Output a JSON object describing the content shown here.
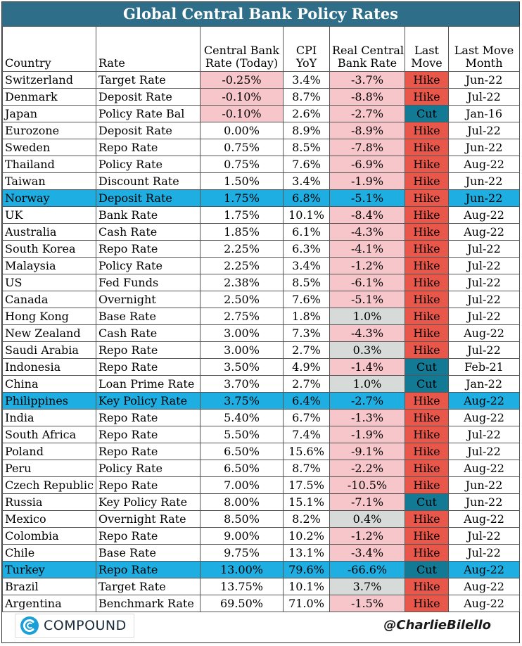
{
  "title": "Global Central Bank Policy Rates",
  "headers": {
    "country": "Country",
    "rate": "Rate",
    "cb_rate_1": "Central Bank",
    "cb_rate_2": "Rate (Today)",
    "cpi_1": "CPI",
    "cpi_2": "YoY",
    "real_1": "Real Central",
    "real_2": "Bank Rate",
    "move_1": "Last",
    "move_2": "Move",
    "month_1": "Last Move",
    "month_2": "Month"
  },
  "colors": {
    "header_bar": "#2f6e89",
    "negative_real": "#f7c6cb",
    "positive_real": "#d6dad8",
    "hike": "#e8574a",
    "cut": "#127a94",
    "highlight_row": "#1eaee2"
  },
  "rows": [
    {
      "country": "Switzerland",
      "rate": "Target Rate",
      "cb": "-0.25%",
      "cpi": "3.4%",
      "real": "-3.7%",
      "move": "Hike",
      "month": "Jun-22",
      "cb_neg": true,
      "highlight": false
    },
    {
      "country": "Denmark",
      "rate": "Deposit Rate",
      "cb": "-0.10%",
      "cpi": "8.7%",
      "real": "-8.8%",
      "move": "Hike",
      "month": "Jul-22",
      "cb_neg": true,
      "highlight": false
    },
    {
      "country": "Japan",
      "rate": "Policy Rate Bal",
      "cb": "-0.10%",
      "cpi": "2.6%",
      "real": "-2.7%",
      "move": "Cut",
      "month": "Jan-16",
      "cb_neg": true,
      "highlight": false
    },
    {
      "country": "Eurozone",
      "rate": "Deposit Rate",
      "cb": "0.00%",
      "cpi": "8.9%",
      "real": "-8.9%",
      "move": "Hike",
      "month": "Jul-22",
      "cb_neg": false,
      "highlight": false
    },
    {
      "country": "Sweden",
      "rate": "Repo Rate",
      "cb": "0.75%",
      "cpi": "8.5%",
      "real": "-7.8%",
      "move": "Hike",
      "month": "Jun-22",
      "cb_neg": false,
      "highlight": false
    },
    {
      "country": "Thailand",
      "rate": "Policy Rate",
      "cb": "0.75%",
      "cpi": "7.6%",
      "real": "-6.9%",
      "move": "Hike",
      "month": "Aug-22",
      "cb_neg": false,
      "highlight": false
    },
    {
      "country": "Taiwan",
      "rate": "Discount Rate",
      "cb": "1.50%",
      "cpi": "3.4%",
      "real": "-1.9%",
      "move": "Hike",
      "month": "Jun-22",
      "cb_neg": false,
      "highlight": false
    },
    {
      "country": "Norway",
      "rate": "Deposit Rate",
      "cb": "1.75%",
      "cpi": "6.8%",
      "real": "-5.1%",
      "move": "Hike",
      "month": "Jun-22",
      "cb_neg": false,
      "highlight": true
    },
    {
      "country": "UK",
      "rate": "Bank Rate",
      "cb": "1.75%",
      "cpi": "10.1%",
      "real": "-8.4%",
      "move": "Hike",
      "month": "Aug-22",
      "cb_neg": false,
      "highlight": false
    },
    {
      "country": "Australia",
      "rate": "Cash Rate",
      "cb": "1.85%",
      "cpi": "6.1%",
      "real": "-4.3%",
      "move": "Hike",
      "month": "Aug-22",
      "cb_neg": false,
      "highlight": false
    },
    {
      "country": "South Korea",
      "rate": "Repo Rate",
      "cb": "2.25%",
      "cpi": "6.3%",
      "real": "-4.1%",
      "move": "Hike",
      "month": "Jul-22",
      "cb_neg": false,
      "highlight": false
    },
    {
      "country": "Malaysia",
      "rate": "Policy Rate",
      "cb": "2.25%",
      "cpi": "3.4%",
      "real": "-1.2%",
      "move": "Hike",
      "month": "Jul-22",
      "cb_neg": false,
      "highlight": false
    },
    {
      "country": "US",
      "rate": "Fed Funds",
      "cb": "2.38%",
      "cpi": "8.5%",
      "real": "-6.1%",
      "move": "Hike",
      "month": "Jul-22",
      "cb_neg": false,
      "highlight": false
    },
    {
      "country": "Canada",
      "rate": "Overnight",
      "cb": "2.50%",
      "cpi": "7.6%",
      "real": "-5.1%",
      "move": "Hike",
      "month": "Jul-22",
      "cb_neg": false,
      "highlight": false
    },
    {
      "country": "Hong Kong",
      "rate": "Base Rate",
      "cb": "2.75%",
      "cpi": "1.8%",
      "real": "1.0%",
      "move": "Hike",
      "month": "Jul-22",
      "cb_neg": false,
      "highlight": false
    },
    {
      "country": "New Zealand",
      "rate": "Cash Rate",
      "cb": "3.00%",
      "cpi": "7.3%",
      "real": "-4.3%",
      "move": "Hike",
      "month": "Aug-22",
      "cb_neg": false,
      "highlight": false
    },
    {
      "country": "Saudi Arabia",
      "rate": "Repo Rate",
      "cb": "3.00%",
      "cpi": "2.7%",
      "real": "0.3%",
      "move": "Hike",
      "month": "Jul-22",
      "cb_neg": false,
      "highlight": false
    },
    {
      "country": "Indonesia",
      "rate": "Repo Rate",
      "cb": "3.50%",
      "cpi": "4.9%",
      "real": "-1.4%",
      "move": "Cut",
      "month": "Feb-21",
      "cb_neg": false,
      "highlight": false
    },
    {
      "country": "China",
      "rate": "Loan Prime Rate",
      "cb": "3.70%",
      "cpi": "2.7%",
      "real": "1.0%",
      "move": "Cut",
      "month": "Jan-22",
      "cb_neg": false,
      "highlight": false
    },
    {
      "country": "Philippines",
      "rate": "Key Policy Rate",
      "cb": "3.75%",
      "cpi": "6.4%",
      "real": "-2.7%",
      "move": "Hike",
      "month": "Aug-22",
      "cb_neg": false,
      "highlight": true
    },
    {
      "country": "India",
      "rate": "Repo Rate",
      "cb": "5.40%",
      "cpi": "6.7%",
      "real": "-1.3%",
      "move": "Hike",
      "month": "Aug-22",
      "cb_neg": false,
      "highlight": false
    },
    {
      "country": "South Africa",
      "rate": "Repo Rate",
      "cb": "5.50%",
      "cpi": "7.4%",
      "real": "-1.9%",
      "move": "Hike",
      "month": "Jul-22",
      "cb_neg": false,
      "highlight": false
    },
    {
      "country": "Poland",
      "rate": "Repo Rate",
      "cb": "6.50%",
      "cpi": "15.6%",
      "real": "-9.1%",
      "move": "Hike",
      "month": "Jul-22",
      "cb_neg": false,
      "highlight": false
    },
    {
      "country": "Peru",
      "rate": "Policy Rate",
      "cb": "6.50%",
      "cpi": "8.7%",
      "real": "-2.2%",
      "move": "Hike",
      "month": "Aug-22",
      "cb_neg": false,
      "highlight": false
    },
    {
      "country": "Czech Republic",
      "rate": "Repo Rate",
      "cb": "7.00%",
      "cpi": "17.5%",
      "real": "-10.5%",
      "move": "Hike",
      "month": "Jun-22",
      "cb_neg": false,
      "highlight": false
    },
    {
      "country": "Russia",
      "rate": "Key Policy Rate",
      "cb": "8.00%",
      "cpi": "15.1%",
      "real": "-7.1%",
      "move": "Cut",
      "month": "Jun-22",
      "cb_neg": false,
      "highlight": false
    },
    {
      "country": "Mexico",
      "rate": "Overnight Rate",
      "cb": "8.50%",
      "cpi": "8.2%",
      "real": "0.4%",
      "move": "Hike",
      "month": "Aug-22",
      "cb_neg": false,
      "highlight": false
    },
    {
      "country": "Colombia",
      "rate": "Repo Rate",
      "cb": "9.00%",
      "cpi": "10.2%",
      "real": "-1.2%",
      "move": "Hike",
      "month": "Jul-22",
      "cb_neg": false,
      "highlight": false
    },
    {
      "country": "Chile",
      "rate": "Base Rate",
      "cb": "9.75%",
      "cpi": "13.1%",
      "real": "-3.4%",
      "move": "Hike",
      "month": "Jul-22",
      "cb_neg": false,
      "highlight": false
    },
    {
      "country": "Turkey",
      "rate": "Repo Rate",
      "cb": "13.00%",
      "cpi": "79.6%",
      "real": "-66.6%",
      "move": "Cut",
      "month": "Aug-22",
      "cb_neg": false,
      "highlight": true
    },
    {
      "country": "Brazil",
      "rate": "Target Rate",
      "cb": "13.75%",
      "cpi": "10.1%",
      "real": "3.7%",
      "move": "Hike",
      "month": "Aug-22",
      "cb_neg": false,
      "highlight": false
    },
    {
      "country": "Argentina",
      "rate": "Benchmark Rate",
      "cb": "69.50%",
      "cpi": "71.0%",
      "real": "-1.5%",
      "move": "Hike",
      "month": "Aug-22",
      "cb_neg": false,
      "highlight": false
    }
  ],
  "footer": {
    "logo_icon": "compound-c-icon",
    "logo_text": "COMPOUND",
    "handle": "@CharlieBilello"
  }
}
